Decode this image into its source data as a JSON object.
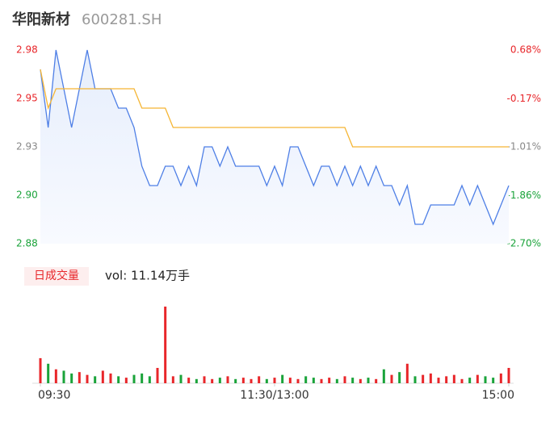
{
  "header": {
    "name": "华阳新材",
    "code": "600281.SH"
  },
  "chart_data": [
    {
      "type": "line",
      "x": [
        0,
        4,
        8,
        12,
        16,
        20,
        24,
        28,
        32,
        36,
        40,
        44,
        48,
        52,
        56,
        60,
        64,
        68,
        72,
        76,
        80,
        84,
        88,
        92,
        96,
        100,
        104,
        108,
        112,
        116,
        120,
        124,
        128,
        132,
        136,
        140,
        144,
        148,
        152,
        156,
        160,
        164,
        168,
        172,
        176,
        180,
        184,
        188,
        192,
        196,
        200,
        204,
        208,
        212,
        216,
        220,
        224,
        228,
        232,
        236,
        240
      ],
      "xlim": [
        0,
        240
      ],
      "xticks": [
        {
          "value": 0,
          "label": "09:30"
        },
        {
          "value": 120,
          "label": "11:30/13:00"
        },
        {
          "value": 240,
          "label": "15:00"
        }
      ],
      "ylim": [
        2.88,
        2.98
      ],
      "yticks": [
        {
          "value": 2.88,
          "label": "2.88"
        },
        {
          "value": 2.905,
          "label": "2.90"
        },
        {
          "value": 2.93,
          "label": "2.93"
        },
        {
          "value": 2.955,
          "label": "2.95"
        },
        {
          "value": 2.98,
          "label": "2.98"
        }
      ],
      "y2lim": [
        -2.7,
        0.68
      ],
      "y2ticks": [
        {
          "value": -2.7,
          "label": "-2.70%"
        },
        {
          "value": -1.86,
          "label": "-1.86%"
        },
        {
          "value": -1.01,
          "label": "-1.01%"
        },
        {
          "value": -0.17,
          "label": "-0.17%"
        },
        {
          "value": 0.68,
          "label": "0.68%"
        }
      ],
      "series": [
        {
          "color": "#4e7fe6",
          "values": [
            2.97,
            2.94,
            2.98,
            2.96,
            2.94,
            2.96,
            2.98,
            2.96,
            2.96,
            2.96,
            2.95,
            2.95,
            2.94,
            2.92,
            2.91,
            2.91,
            2.92,
            2.92,
            2.91,
            2.92,
            2.91,
            2.93,
            2.93,
            2.92,
            2.93,
            2.92,
            2.92,
            2.92,
            2.92,
            2.91,
            2.92,
            2.91,
            2.93,
            2.93,
            2.92,
            2.91,
            2.92,
            2.92,
            2.91,
            2.92,
            2.91,
            2.92,
            2.91,
            2.92,
            2.91,
            2.91,
            2.9,
            2.91,
            2.89,
            2.89,
            2.9,
            2.9,
            2.9,
            2.9,
            2.91,
            2.9,
            2.91,
            2.9,
            2.89,
            2.9,
            2.91
          ]
        },
        {
          "color": "#f5b533",
          "values": [
            2.97,
            2.95,
            2.96,
            2.96,
            2.96,
            2.96,
            2.96,
            2.96,
            2.96,
            2.96,
            2.96,
            2.96,
            2.96,
            2.95,
            2.95,
            2.95,
            2.95,
            2.94,
            2.94,
            2.94,
            2.94,
            2.94,
            2.94,
            2.94,
            2.94,
            2.94,
            2.94,
            2.94,
            2.94,
            2.94,
            2.94,
            2.94,
            2.94,
            2.94,
            2.94,
            2.94,
            2.94,
            2.94,
            2.94,
            2.94,
            2.93,
            2.93,
            2.93,
            2.93,
            2.93,
            2.93,
            2.93,
            2.93,
            2.93,
            2.93,
            2.93,
            2.93,
            2.93,
            2.93,
            2.93,
            2.93,
            2.93,
            2.93,
            2.93,
            2.93,
            2.93
          ]
        }
      ]
    },
    {
      "type": "bar",
      "legend_label": "日成交量",
      "summary": "vol: 11.14万手",
      "up_color": "#e8262a",
      "down_color": "#1aa33a",
      "values": [
        1800,
        1400,
        1000,
        900,
        700,
        800,
        600,
        500,
        900,
        700,
        500,
        400,
        600,
        700,
        500,
        1100,
        5500,
        500,
        600,
        400,
        300,
        500,
        300,
        400,
        500,
        300,
        400,
        300,
        500,
        300,
        400,
        600,
        400,
        300,
        500,
        400,
        300,
        400,
        300,
        500,
        400,
        300,
        400,
        300,
        1000,
        600,
        800,
        1400,
        500,
        600,
        700,
        400,
        500,
        600,
        300,
        400,
        600,
        500,
        400,
        700,
        1100
      ]
    }
  ]
}
